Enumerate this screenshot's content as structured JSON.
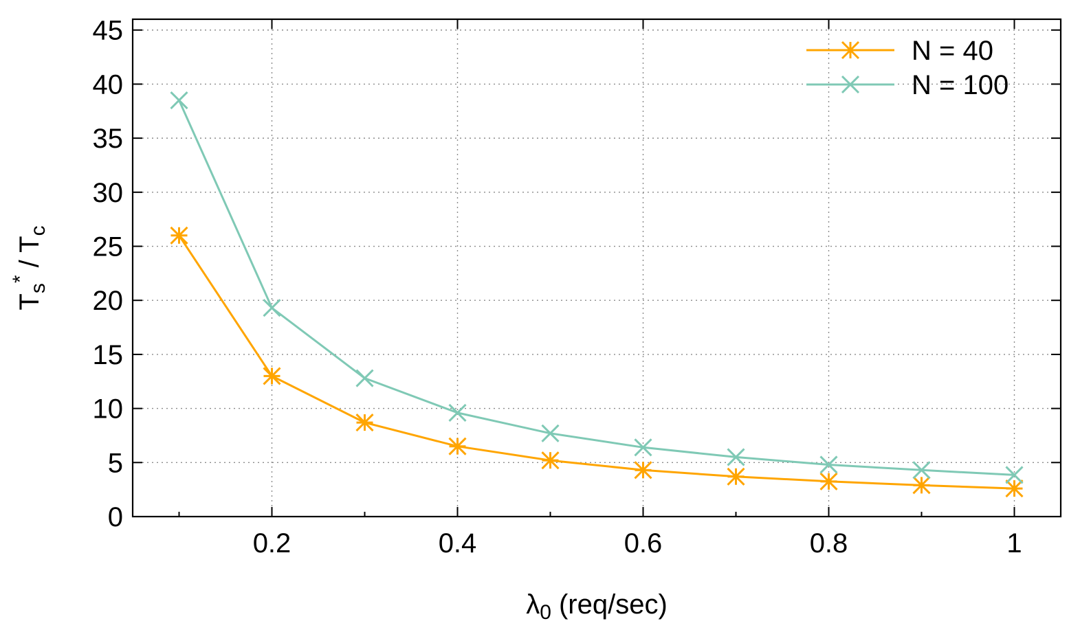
{
  "chart_data": {
    "type": "line",
    "title": "",
    "xlabel": {
      "symbol": "λ",
      "subscript": "0",
      "unit": " (req/sec)"
    },
    "ylabel": {
      "base": "T",
      "sub1": "s",
      "sup": "*",
      "mid": " / T",
      "sub2": "c"
    },
    "xlim": [
      0.05,
      1.05
    ],
    "ylim": [
      0,
      46
    ],
    "x_ticks": [
      0.2,
      0.4,
      0.6,
      0.8,
      1.0
    ],
    "x_tick_labels": [
      "0.2",
      "0.4",
      "0.6",
      "0.8",
      "1"
    ],
    "y_ticks": [
      0,
      5,
      10,
      15,
      20,
      25,
      30,
      35,
      40,
      45
    ],
    "y_tick_labels": [
      "0",
      "5",
      "10",
      "15",
      "20",
      "25",
      "30",
      "35",
      "40",
      "45"
    ],
    "grid": true,
    "legend_position": "top-right",
    "x": [
      0.1,
      0.2,
      0.3,
      0.4,
      0.5,
      0.6,
      0.7,
      0.8,
      0.9,
      1.0
    ],
    "series": [
      {
        "name": "N = 40",
        "color": "#FFA500",
        "marker": "asterisk",
        "values": [
          26.0,
          13.0,
          8.7,
          6.5,
          5.2,
          4.3,
          3.7,
          3.25,
          2.9,
          2.6
        ]
      },
      {
        "name": "N = 100",
        "color": "#7FC9B5",
        "marker": "cross",
        "values": [
          38.5,
          19.3,
          12.8,
          9.6,
          7.7,
          6.4,
          5.5,
          4.8,
          4.3,
          3.85
        ]
      }
    ]
  }
}
